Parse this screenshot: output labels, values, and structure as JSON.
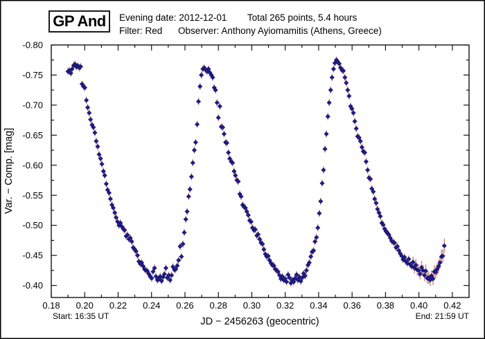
{
  "header": {
    "star_name": "GP And",
    "evening_date": "Evening date: 2012-12-01",
    "total_points": "Total 265 points, 5.4 hours",
    "filter": "Filter: Red",
    "observer": "Observer: Anthony Ayiomamitis (Athens, Greece)"
  },
  "footer": {
    "start": "Start: 16:35 UT",
    "end": "End: 21:59 UT"
  },
  "colors": {
    "background": "#ffffff",
    "frame": "#000000",
    "text": "#000000"
  },
  "chart_data": {
    "type": "scatter",
    "title": "GP And",
    "xlabel": "JD − 2456263  (geocentric)",
    "ylabel": "Var. − Comp. [mag]",
    "xlim": [
      0.18,
      0.43
    ],
    "ylim": [
      -0.8,
      -0.38
    ],
    "y_axis_note": "magnitude axis, brighter (more negative) values at top; ylim given top-to-bottom",
    "grid": false,
    "legend": "none",
    "x_major_ticks": [
      0.18,
      0.2,
      0.22,
      0.24,
      0.26,
      0.28,
      0.3,
      0.32,
      0.34,
      0.36,
      0.38,
      0.4,
      0.42
    ],
    "x_major_tick_labels": [
      "0.18",
      "0.20",
      "0.22",
      "0.24",
      "0.26",
      "0.28",
      "0.30",
      "0.32",
      "0.34",
      "0.36",
      "0.38",
      "0.40",
      "0.42"
    ],
    "x_minor_step": 0.01,
    "y_major_ticks": [
      -0.8,
      -0.75,
      -0.7,
      -0.65,
      -0.6,
      -0.55,
      -0.5,
      -0.45,
      -0.4
    ],
    "y_major_tick_labels": [
      "-0.80",
      "-0.75",
      "-0.70",
      "-0.65",
      "-0.60",
      "-0.55",
      "-0.50",
      "-0.45",
      "-0.40"
    ],
    "y_minor_step": 0.025,
    "marker_shape": "diamond",
    "marker_color": "#1e1e96",
    "marker_edge_color": "#0d0d50",
    "error_bar_color": "#d08282",
    "default_mag_error": 0.006,
    "points": [
      [
        0.19,
        -0.756
      ],
      [
        0.1908,
        -0.7575
      ],
      [
        0.1917,
        -0.753
      ],
      [
        0.1925,
        -0.76
      ],
      [
        0.1934,
        -0.766
      ],
      [
        0.1942,
        -0.768
      ],
      [
        0.1951,
        -0.7635
      ],
      [
        0.1959,
        -0.7655
      ],
      [
        0.1968,
        -0.762
      ],
      [
        0.1976,
        -0.764
      ],
      [
        0.1984,
        -0.735
      ],
      [
        0.1993,
        -0.731
      ],
      [
        0.2001,
        -0.729
      ],
      [
        0.201,
        -0.708
      ],
      [
        0.2018,
        -0.696
      ],
      [
        0.2027,
        -0.687
      ],
      [
        0.2035,
        -0.676
      ],
      [
        0.2044,
        -0.667
      ],
      [
        0.2052,
        -0.663
      ],
      [
        0.2061,
        -0.654
      ],
      [
        0.2069,
        -0.64
      ],
      [
        0.2078,
        -0.631
      ],
      [
        0.2086,
        -0.618
      ],
      [
        0.2095,
        -0.611
      ],
      [
        0.2103,
        -0.602
      ],
      [
        0.2112,
        -0.59
      ],
      [
        0.212,
        -0.583
      ],
      [
        0.2129,
        -0.569
      ],
      [
        0.2137,
        -0.559
      ],
      [
        0.2146,
        -0.554
      ],
      [
        0.2154,
        -0.544
      ],
      [
        0.2163,
        -0.534
      ],
      [
        0.2171,
        -0.529
      ],
      [
        0.218,
        -0.521
      ],
      [
        0.2188,
        -0.513
      ],
      [
        0.2197,
        -0.506
      ],
      [
        0.2205,
        -0.5
      ],
      [
        0.2214,
        -0.504
      ],
      [
        0.2222,
        -0.498
      ],
      [
        0.2231,
        -0.494
      ],
      [
        0.2239,
        -0.492
      ],
      [
        0.2248,
        -0.482
      ],
      [
        0.2256,
        -0.484
      ],
      [
        0.2265,
        -0.477
      ],
      [
        0.2273,
        -0.479
      ],
      [
        0.2282,
        -0.473
      ],
      [
        0.229,
        -0.463
      ],
      [
        0.2299,
        -0.46
      ],
      [
        0.2307,
        -0.457
      ],
      [
        0.2316,
        -0.45
      ],
      [
        0.2324,
        -0.44
      ],
      [
        0.2333,
        -0.436
      ],
      [
        0.2341,
        -0.438
      ],
      [
        0.235,
        -0.432
      ],
      [
        0.2358,
        -0.427
      ],
      [
        0.2367,
        -0.425
      ],
      [
        0.2375,
        -0.424
      ],
      [
        0.2384,
        -0.419
      ],
      [
        0.2392,
        -0.415
      ],
      [
        0.2401,
        -0.412
      ],
      [
        0.2409,
        -0.423
      ],
      [
        0.2418,
        -0.429
      ],
      [
        0.2426,
        -0.415
      ],
      [
        0.2435,
        -0.409
      ],
      [
        0.2443,
        -0.411
      ],
      [
        0.2452,
        -0.415
      ],
      [
        0.246,
        -0.4075
      ],
      [
        0.2469,
        -0.414
      ],
      [
        0.2477,
        -0.419
      ],
      [
        0.2486,
        -0.429
      ],
      [
        0.2494,
        -0.413
      ],
      [
        0.2503,
        -0.417
      ],
      [
        0.2511,
        -0.409
      ],
      [
        0.252,
        -0.417
      ],
      [
        0.2528,
        -0.431
      ],
      [
        0.2537,
        -0.426
      ],
      [
        0.2545,
        -0.427
      ],
      [
        0.2554,
        -0.433
      ],
      [
        0.2562,
        -0.442
      ],
      [
        0.2571,
        -0.465
      ],
      [
        0.2579,
        -0.448
      ],
      [
        0.2588,
        -0.469
      ],
      [
        0.2596,
        -0.488
      ],
      [
        0.2605,
        -0.51
      ],
      [
        0.2613,
        -0.523
      ],
      [
        0.2622,
        -0.548
      ],
      [
        0.263,
        -0.56
      ],
      [
        0.2639,
        -0.581
      ],
      [
        0.2647,
        -0.604
      ],
      [
        0.2656,
        -0.625
      ],
      [
        0.2664,
        -0.638
      ],
      [
        0.2673,
        -0.668
      ],
      [
        0.2681,
        -0.706
      ],
      [
        0.269,
        -0.731
      ],
      [
        0.2698,
        -0.75
      ],
      [
        0.2707,
        -0.76
      ],
      [
        0.2715,
        -0.762
      ],
      [
        0.2724,
        -0.759
      ],
      [
        0.2732,
        -0.756
      ],
      [
        0.2741,
        -0.76
      ],
      [
        0.2749,
        -0.754
      ],
      [
        0.2758,
        -0.75
      ],
      [
        0.2766,
        -0.746
      ],
      [
        0.2775,
        -0.729
      ],
      [
        0.2783,
        -0.725
      ],
      [
        0.2792,
        -0.704
      ],
      [
        0.28,
        -0.679
      ],
      [
        0.2809,
        -0.698
      ],
      [
        0.2817,
        -0.664
      ],
      [
        0.2826,
        -0.663
      ],
      [
        0.2834,
        -0.652
      ],
      [
        0.2843,
        -0.638
      ],
      [
        0.2851,
        -0.637
      ],
      [
        0.286,
        -0.621
      ],
      [
        0.2868,
        -0.611
      ],
      [
        0.2877,
        -0.606
      ],
      [
        0.2885,
        -0.604
      ],
      [
        0.2894,
        -0.59
      ],
      [
        0.2902,
        -0.583
      ],
      [
        0.2911,
        -0.575
      ],
      [
        0.2919,
        -0.573
      ],
      [
        0.2928,
        -0.552
      ],
      [
        0.2936,
        -0.548
      ],
      [
        0.2945,
        -0.534
      ],
      [
        0.2953,
        -0.531
      ],
      [
        0.2962,
        -0.529
      ],
      [
        0.297,
        -0.523
      ],
      [
        0.2979,
        -0.517
      ],
      [
        0.2987,
        -0.508
      ],
      [
        0.2996,
        -0.506
      ],
      [
        0.3004,
        -0.496
      ],
      [
        0.3013,
        -0.492
      ],
      [
        0.3021,
        -0.493
      ],
      [
        0.303,
        -0.483
      ],
      [
        0.3038,
        -0.485
      ],
      [
        0.3047,
        -0.477
      ],
      [
        0.3055,
        -0.471
      ],
      [
        0.3064,
        -0.469
      ],
      [
        0.3072,
        -0.46
      ],
      [
        0.3081,
        -0.452
      ],
      [
        0.3089,
        -0.448
      ],
      [
        0.3098,
        -0.449
      ],
      [
        0.3106,
        -0.442
      ],
      [
        0.3115,
        -0.437
      ],
      [
        0.3123,
        -0.434
      ],
      [
        0.3132,
        -0.433
      ],
      [
        0.314,
        -0.427
      ],
      [
        0.3149,
        -0.425
      ],
      [
        0.3157,
        -0.423
      ],
      [
        0.3166,
        -0.417
      ],
      [
        0.3174,
        -0.411
      ],
      [
        0.3183,
        -0.415
      ],
      [
        0.3191,
        -0.409
      ],
      [
        0.32,
        -0.411
      ],
      [
        0.3208,
        -0.406
      ],
      [
        0.3217,
        -0.418
      ],
      [
        0.3225,
        -0.413
      ],
      [
        0.3234,
        -0.404
      ],
      [
        0.3242,
        -0.409
      ],
      [
        0.3251,
        -0.406
      ],
      [
        0.3259,
        -0.412
      ],
      [
        0.3268,
        -0.418
      ],
      [
        0.3276,
        -0.409
      ],
      [
        0.3285,
        -0.414
      ],
      [
        0.3293,
        -0.407
      ],
      [
        0.3302,
        -0.413
      ],
      [
        0.331,
        -0.42
      ],
      [
        0.3319,
        -0.416
      ],
      [
        0.3327,
        -0.425
      ],
      [
        0.3336,
        -0.434
      ],
      [
        0.3344,
        -0.438
      ],
      [
        0.3353,
        -0.448
      ],
      [
        0.3361,
        -0.456
      ],
      [
        0.337,
        -0.458
      ],
      [
        0.3378,
        -0.473
      ],
      [
        0.3387,
        -0.48
      ],
      [
        0.3395,
        -0.496
      ],
      [
        0.3404,
        -0.52
      ],
      [
        0.3412,
        -0.54
      ],
      [
        0.3421,
        -0.57
      ],
      [
        0.3429,
        -0.592
      ],
      [
        0.3438,
        -0.627
      ],
      [
        0.3446,
        -0.652
      ],
      [
        0.3455,
        -0.681
      ],
      [
        0.3463,
        -0.704
      ],
      [
        0.3472,
        -0.725
      ],
      [
        0.348,
        -0.746
      ],
      [
        0.3489,
        -0.76
      ],
      [
        0.3497,
        -0.77
      ],
      [
        0.3506,
        -0.775
      ],
      [
        0.3514,
        -0.772
      ],
      [
        0.3523,
        -0.769
      ],
      [
        0.3531,
        -0.762
      ],
      [
        0.354,
        -0.758
      ],
      [
        0.3548,
        -0.757
      ],
      [
        0.3557,
        -0.746
      ],
      [
        0.3565,
        -0.737
      ],
      [
        0.3574,
        -0.725
      ],
      [
        0.3582,
        -0.715
      ],
      [
        0.3591,
        -0.698
      ],
      [
        0.3599,
        -0.694
      ],
      [
        0.3608,
        -0.687
      ],
      [
        0.3616,
        -0.673
      ],
      [
        0.3625,
        -0.661
      ],
      [
        0.3633,
        -0.648
      ],
      [
        0.3642,
        -0.646
      ],
      [
        0.365,
        -0.64
      ],
      [
        0.3659,
        -0.63
      ],
      [
        0.3667,
        -0.623
      ],
      [
        0.3676,
        -0.621
      ],
      [
        0.3684,
        -0.606
      ],
      [
        0.3693,
        -0.592
      ],
      [
        0.3701,
        -0.579
      ],
      [
        0.371,
        -0.577
      ],
      [
        0.3718,
        -0.561
      ],
      [
        0.3727,
        -0.556
      ],
      [
        0.3735,
        -0.544
      ],
      [
        0.3744,
        -0.537
      ],
      [
        0.3752,
        -0.527
      ],
      [
        0.3761,
        -0.521
      ],
      [
        0.3769,
        -0.515
      ],
      [
        0.3778,
        -0.504
      ],
      [
        0.3786,
        -0.501
      ],
      [
        0.3795,
        -0.494
      ],
      [
        0.3803,
        -0.49
      ],
      [
        0.3812,
        -0.487
      ],
      [
        0.382,
        -0.4845
      ],
      [
        0.3829,
        -0.479
      ],
      [
        0.3837,
        -0.474
      ],
      [
        0.3846,
        -0.472
      ],
      [
        0.3854,
        -0.471
      ],
      [
        0.3863,
        -0.463
      ],
      [
        0.3871,
        -0.465
      ],
      [
        0.388,
        -0.458
      ],
      [
        0.3888,
        -0.453
      ],
      [
        0.3897,
        -0.449
      ],
      [
        0.3905,
        -0.443
      ],
      [
        0.3914,
        -0.447
      ],
      [
        0.3922,
        -0.44
      ],
      [
        0.3931,
        -0.437
      ],
      [
        0.3939,
        -0.444
      ],
      [
        0.3948,
        -0.435
      ],
      [
        0.3956,
        -0.432
      ],
      [
        0.3965,
        -0.439,
        0.009
      ],
      [
        0.3973,
        -0.429,
        0.009
      ],
      [
        0.3982,
        -0.434,
        0.01
      ],
      [
        0.399,
        -0.426,
        0.009
      ],
      [
        0.3999,
        -0.425,
        0.01
      ],
      [
        0.4007,
        -0.419,
        0.009
      ],
      [
        0.4016,
        -0.43,
        0.011
      ],
      [
        0.4024,
        -0.425,
        0.009
      ],
      [
        0.4033,
        -0.417,
        0.01
      ],
      [
        0.4041,
        -0.424,
        0.011
      ],
      [
        0.405,
        -0.412,
        0.009
      ],
      [
        0.4058,
        -0.413,
        0.01
      ],
      [
        0.4067,
        -0.409,
        0.01
      ],
      [
        0.4075,
        -0.416,
        0.009
      ],
      [
        0.4084,
        -0.411,
        0.01
      ],
      [
        0.4092,
        -0.423,
        0.011
      ],
      [
        0.4101,
        -0.422,
        0.01
      ],
      [
        0.4109,
        -0.427,
        0.01
      ],
      [
        0.4118,
        -0.432,
        0.011
      ],
      [
        0.4126,
        -0.438,
        0.01
      ],
      [
        0.4135,
        -0.448,
        0.012
      ],
      [
        0.4143,
        -0.449,
        0.011
      ],
      [
        0.4152,
        -0.466,
        0.012
      ]
    ]
  }
}
